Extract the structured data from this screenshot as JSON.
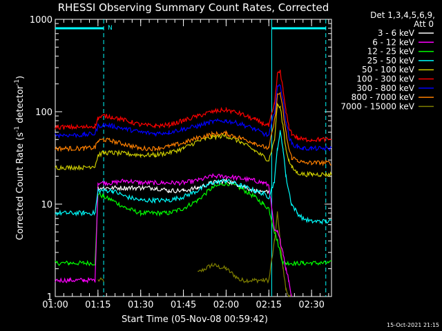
{
  "chart_data": {
    "type": "line",
    "title": "RHESSI Observing Summary Count Rates, Corrected",
    "xlabel": "Start Time (05-Nov-08 00:59:42)",
    "ylabel_main": "Corrected Count Rate (s",
    "ylabel_sup1": "-1",
    "ylabel_mid": " detector",
    "ylabel_sup2": "-1",
    "ylabel_end": ")",
    "y_scale": "log",
    "ylim": [
      1,
      1000
    ],
    "xlim": [
      "01:00",
      "02:37"
    ],
    "x_ticks": [
      "01:00",
      "01:15",
      "01:30",
      "01:45",
      "02:00",
      "02:15",
      "02:30"
    ],
    "y_ticks": [
      "1",
      "10",
      "100",
      "1000"
    ],
    "legend_header": [
      "Det 1,3,4,5,6,9,",
      "Att 0"
    ],
    "legend_position": "right",
    "timestamp": "15-Oct-2021 21:15",
    "night_flag": "N",
    "x_minutes": [
      0,
      5,
      10,
      14,
      15,
      17,
      20,
      25,
      30,
      35,
      40,
      45,
      50,
      55,
      60,
      65,
      70,
      73,
      75,
      77,
      78,
      79,
      80,
      81,
      82,
      83,
      85,
      87,
      90,
      93,
      95,
      97
    ],
    "series": [
      {
        "name": "3 - 6 keV",
        "color": "#ffffff",
        "values": [
          null,
          null,
          null,
          null,
          15,
          15,
          15,
          15,
          15,
          15,
          14,
          14,
          15,
          17,
          18,
          16,
          14,
          13,
          14,
          null,
          null,
          null,
          null,
          null,
          null,
          null,
          null,
          null,
          null,
          null,
          null,
          null
        ]
      },
      {
        "name": "6 - 12 keV",
        "color": "#ff00ff",
        "values": [
          1.5,
          1.5,
          1.5,
          1.5,
          17,
          17,
          17,
          18,
          17,
          17,
          17,
          17,
          18,
          20,
          20,
          19,
          18,
          17,
          16,
          5,
          5,
          4,
          3,
          2,
          1.5,
          1,
          null,
          null,
          null,
          null,
          null,
          null
        ]
      },
      {
        "name": "12 - 25 keV",
        "color": "#00ff00",
        "values": [
          2.3,
          2.3,
          2.3,
          2.3,
          13,
          12,
          11,
          9,
          8,
          8,
          8,
          9,
          11,
          15,
          17,
          15,
          12,
          10,
          9,
          5,
          4,
          3,
          2.3,
          2.3,
          2.3,
          2.3,
          2.3,
          2.3,
          2.3,
          2.3,
          2.3,
          2.3
        ]
      },
      {
        "name": "25 - 50 keV",
        "color": "#00ffff",
        "values": [
          8,
          8,
          8,
          8,
          14,
          14,
          14,
          12,
          11,
          11,
          11,
          12,
          14,
          17,
          18,
          16,
          14,
          13,
          12,
          18,
          40,
          60,
          40,
          20,
          14,
          10,
          8,
          7,
          6.5,
          6.5,
          6.5,
          6.5
        ]
      },
      {
        "name": "50 - 100 keV",
        "color": "#cccc00",
        "values": [
          25,
          25,
          25,
          26,
          34,
          36,
          36,
          35,
          34,
          34,
          36,
          40,
          48,
          53,
          55,
          47,
          38,
          33,
          30,
          50,
          120,
          110,
          70,
          40,
          30,
          25,
          22,
          21,
          21,
          21,
          21,
          21
        ]
      },
      {
        "name": "100 - 300 keV",
        "color": "#ff0000",
        "values": [
          68,
          68,
          68,
          70,
          85,
          90,
          88,
          80,
          72,
          70,
          72,
          80,
          90,
          100,
          105,
          95,
          82,
          75,
          70,
          120,
          250,
          280,
          170,
          100,
          70,
          58,
          52,
          50,
          50,
          50,
          50,
          50
        ]
      },
      {
        "name": "300 - 800 keV",
        "color": "#0000ff",
        "values": [
          56,
          56,
          56,
          58,
          70,
          72,
          70,
          65,
          60,
          58,
          60,
          65,
          70,
          78,
          80,
          74,
          65,
          58,
          55,
          100,
          180,
          200,
          130,
          80,
          55,
          45,
          42,
          40,
          40,
          40,
          40,
          40
        ]
      },
      {
        "name": "800 - 7000 keV",
        "color": "#ff8000",
        "values": [
          40,
          40,
          40,
          41,
          48,
          50,
          48,
          44,
          40,
          40,
          42,
          46,
          52,
          57,
          58,
          52,
          46,
          42,
          40,
          80,
          150,
          160,
          100,
          60,
          40,
          32,
          30,
          28,
          28,
          28,
          28,
          28
        ]
      },
      {
        "name": "7000 - 15000 keV",
        "color": "#808000",
        "values": [
          null,
          null,
          null,
          null,
          1.5,
          1.5,
          null,
          null,
          null,
          null,
          null,
          null,
          1.8,
          2.2,
          2.0,
          1.5,
          1.5,
          1.5,
          1.5,
          4,
          8,
          4,
          2,
          1.2,
          1,
          1,
          null,
          null,
          null,
          null,
          null,
          null
        ]
      }
    ],
    "attenuator_markers": [
      "01:17",
      "02:16",
      "02:35"
    ]
  }
}
